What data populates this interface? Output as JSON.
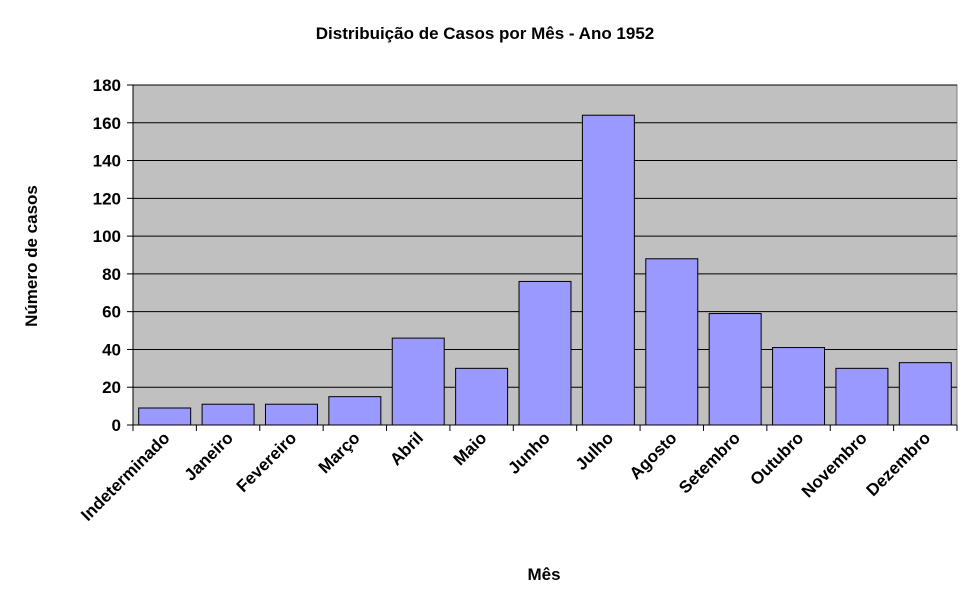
{
  "chart_data": {
    "type": "bar",
    "title": "Distribuição de Casos por Mês - Ano 1952",
    "xlabel": "Mês",
    "ylabel": "Número de casos",
    "categories": [
      "Indeterminado",
      "Janeiro",
      "Fevereiro",
      "Março",
      "Abril",
      "Maio",
      "Junho",
      "Julho",
      "Agosto",
      "Setembro",
      "Outubro",
      "Novembro",
      "Dezembro"
    ],
    "values": [
      9,
      11,
      11,
      15,
      46,
      30,
      76,
      164,
      88,
      59,
      41,
      30,
      33
    ],
    "ylim": [
      0,
      180
    ],
    "yticks": [
      0,
      20,
      40,
      60,
      80,
      100,
      120,
      140,
      160,
      180
    ],
    "ytick_labels": [
      "0",
      "20",
      "40",
      "60",
      "80",
      "100",
      "120",
      "140",
      "160",
      "180"
    ],
    "grid": true,
    "legend": "none",
    "colors": {
      "plot_background": "#c0c0c0",
      "bar_fill": "#9999ff",
      "bar_stroke": "#000000",
      "gridline": "#000000"
    }
  }
}
